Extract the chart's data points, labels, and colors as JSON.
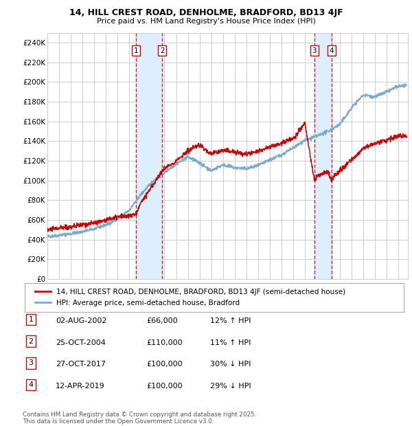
{
  "title_line1": "14, HILL CREST ROAD, DENHOLME, BRADFORD, BD13 4JF",
  "title_line2": "Price paid vs. HM Land Registry's House Price Index (HPI)",
  "ylim": [
    0,
    250000
  ],
  "yticks": [
    0,
    20000,
    40000,
    60000,
    80000,
    100000,
    120000,
    140000,
    160000,
    180000,
    200000,
    220000,
    240000
  ],
  "ytick_labels": [
    "£0",
    "£20K",
    "£40K",
    "£60K",
    "£80K",
    "£100K",
    "£120K",
    "£140K",
    "£160K",
    "£180K",
    "£200K",
    "£220K",
    "£240K"
  ],
  "xstart": 1995.0,
  "xend": 2025.8,
  "transactions": [
    {
      "date_num": 2002.58,
      "price": 66000,
      "label": "1"
    },
    {
      "date_num": 2004.81,
      "price": 110000,
      "label": "2"
    },
    {
      "date_num": 2017.81,
      "price": 100000,
      "label": "3"
    },
    {
      "date_num": 2019.27,
      "price": 100000,
      "label": "4"
    }
  ],
  "transaction_info": [
    {
      "num": "1",
      "date": "02-AUG-2002",
      "price": "£66,000",
      "hpi": "12% ↑ HPI"
    },
    {
      "num": "2",
      "date": "25-OCT-2004",
      "price": "£110,000",
      "hpi": "11% ↑ HPI"
    },
    {
      "num": "3",
      "date": "27-OCT-2017",
      "price": "£100,000",
      "hpi": "30% ↓ HPI"
    },
    {
      "num": "4",
      "date": "12-APR-2019",
      "price": "£100,000",
      "hpi": "29% ↓ HPI"
    }
  ],
  "legend_property": "14, HILL CREST ROAD, DENHOLME, BRADFORD, BD13 4JF (semi-detached house)",
  "legend_hpi": "HPI: Average price, semi-detached house, Bradford",
  "footer": "Contains HM Land Registry data © Crown copyright and database right 2025.\nThis data is licensed under the Open Government Licence v3.0.",
  "line_color_property": "#cc0000",
  "line_color_hpi": "#7aabcf",
  "shade_color": "#ddeeff",
  "grid_color": "#cccccc",
  "background_color": "#ffffff"
}
